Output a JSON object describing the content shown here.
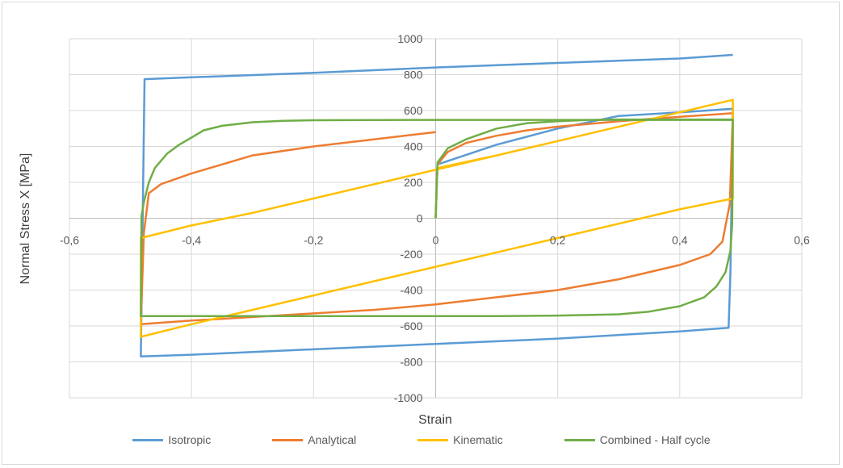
{
  "chart_data": {
    "type": "line",
    "title": "",
    "xlabel": "Strain",
    "ylabel": "Normal Stress X [MPa]",
    "xlim": [
      -0.6,
      0.6
    ],
    "ylim": [
      -1000,
      1000
    ],
    "x_ticks": [
      -0.6,
      -0.4,
      -0.2,
      0,
      0.2,
      0.4,
      0.6
    ],
    "y_ticks": [
      -1000,
      -800,
      -600,
      -400,
      -200,
      0,
      200,
      400,
      600,
      800,
      1000
    ],
    "x_tick_labels": [
      "-0,6",
      "-0,4",
      "-0,2",
      "0",
      "0,2",
      "0,4",
      "0,6"
    ],
    "y_tick_labels": [
      "-1000",
      "-800",
      "-600",
      "-400",
      "-200",
      "0",
      "200",
      "400",
      "600",
      "800",
      "1000"
    ],
    "grid": true,
    "legend_position": "bottom",
    "series": [
      {
        "name": "Isotropic",
        "color": "#5B9BD5",
        "x": [
          0,
          0.003,
          0.1,
          0.2,
          0.3,
          0.4,
          0.487,
          0.483,
          0.48,
          0.4,
          0.2,
          0,
          -0.2,
          -0.4,
          -0.483,
          -0.48,
          -0.477,
          -0.4,
          -0.2,
          0,
          0.2,
          0.4,
          0.487
        ],
        "y": [
          0,
          300,
          410,
          500,
          570,
          590,
          610,
          -300,
          -610,
          -630,
          -670,
          -700,
          -730,
          -760,
          -770,
          0,
          775,
          785,
          810,
          840,
          865,
          890,
          910
        ]
      },
      {
        "name": "Analytical",
        "color": "#ED7D31",
        "x": [
          0,
          0.003,
          0.02,
          0.05,
          0.1,
          0.15,
          0.2,
          0.3,
          0.4,
          0.487,
          0.482,
          0.47,
          0.45,
          0.4,
          0.3,
          0.2,
          0.1,
          0,
          -0.1,
          -0.2,
          -0.3,
          -0.4,
          -0.483,
          -0.478,
          -0.47,
          -0.45,
          -0.4,
          -0.35,
          -0.3,
          -0.2,
          -0.1,
          0
        ],
        "y": [
          0,
          300,
          370,
          420,
          460,
          490,
          510,
          540,
          565,
          585,
          80,
          -130,
          -200,
          -260,
          -340,
          -400,
          -440,
          -480,
          -510,
          -530,
          -550,
          -570,
          -590,
          -80,
          140,
          190,
          250,
          300,
          350,
          400,
          440,
          480
        ]
      },
      {
        "name": "Kinematic",
        "color": "#FFC000",
        "x": [
          0,
          0.003,
          0.1,
          0.2,
          0.3,
          0.4,
          0.487,
          0.487,
          0.4,
          0.3,
          0.2,
          0.1,
          0,
          -0.1,
          -0.2,
          -0.3,
          -0.4,
          -0.483,
          -0.483,
          -0.4,
          -0.3,
          -0.2,
          -0.1,
          0,
          0.1,
          0.2,
          0.3,
          0.4,
          0.487
        ],
        "y": [
          0,
          280,
          350,
          430,
          510,
          590,
          660,
          110,
          50,
          -30,
          -110,
          -190,
          -270,
          -350,
          -430,
          -510,
          -590,
          -660,
          -110,
          -40,
          30,
          110,
          190,
          270,
          350,
          430,
          510,
          590,
          660
        ]
      },
      {
        "name": "Combined - Half cycle",
        "color": "#70AD47",
        "x": [
          0,
          0.003,
          0.02,
          0.05,
          0.1,
          0.15,
          0.2,
          0.25,
          0.3,
          0.487,
          0.486,
          0.483,
          0.475,
          0.46,
          0.44,
          0.4,
          0.35,
          0.3,
          0.2,
          0.1,
          0,
          -0.1,
          -0.2,
          -0.3,
          -0.483,
          -0.482,
          -0.478,
          -0.47,
          -0.46,
          -0.44,
          -0.42,
          -0.4,
          -0.38,
          -0.35,
          -0.3,
          -0.25,
          -0.2,
          0,
          0.2,
          0.487
        ],
        "y": [
          0,
          310,
          390,
          440,
          500,
          530,
          540,
          548,
          550,
          550,
          -30,
          -180,
          -300,
          -380,
          -440,
          -490,
          -520,
          -535,
          -542,
          -545,
          -545,
          -545,
          -545,
          -545,
          -545,
          10,
          90,
          200,
          280,
          360,
          410,
          450,
          490,
          515,
          535,
          543,
          546,
          548,
          548,
          548
        ]
      }
    ]
  }
}
